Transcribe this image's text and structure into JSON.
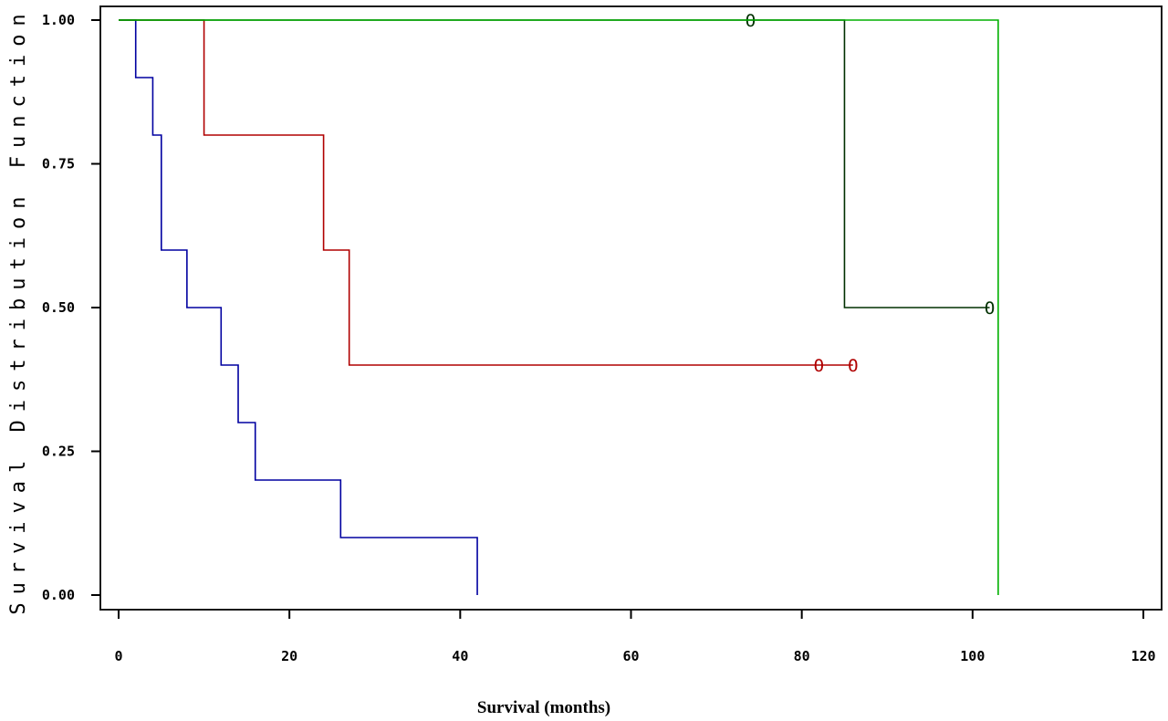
{
  "chart_data": {
    "type": "line",
    "step": true,
    "xlabel": "Survival (months)",
    "ylabel": "Survival Distribution Function",
    "xlim": [
      0,
      120
    ],
    "ylim": [
      0,
      1
    ],
    "xticks": [
      0,
      20,
      40,
      60,
      80,
      100,
      120
    ],
    "xtick_labels": [
      "0",
      "20",
      "40",
      "60",
      "80",
      "100",
      "120"
    ],
    "yticks": [
      0,
      0.25,
      0.5,
      0.75,
      1.0
    ],
    "ytick_labels": [
      "0.00",
      "0.25",
      "0.50",
      "0.75",
      "1.00"
    ],
    "grid": false,
    "censor_marker": "O",
    "series": [
      {
        "color": "#0000a0",
        "x": [
          0,
          2,
          4,
          5,
          8,
          12,
          14,
          16,
          26,
          42
        ],
        "y": [
          1.0,
          0.9,
          0.8,
          0.6,
          0.5,
          0.4,
          0.3,
          0.2,
          0.1,
          0.0
        ],
        "censored": []
      },
      {
        "color": "#b00000",
        "x": [
          0,
          10,
          24,
          27,
          86
        ],
        "y": [
          1.0,
          0.8,
          0.6,
          0.4,
          0.4
        ],
        "censored": [
          [
            82,
            0.4
          ],
          [
            86,
            0.4
          ]
        ]
      },
      {
        "color": "#003000",
        "x": [
          0,
          85,
          102
        ],
        "y": [
          1.0,
          0.5,
          0.5
        ],
        "censored": [
          [
            74,
            1.0
          ],
          [
            102,
            0.5
          ]
        ]
      },
      {
        "color": "#00b000",
        "x": [
          0,
          103
        ],
        "y": [
          1.0,
          0.0
        ],
        "censored": []
      }
    ]
  }
}
